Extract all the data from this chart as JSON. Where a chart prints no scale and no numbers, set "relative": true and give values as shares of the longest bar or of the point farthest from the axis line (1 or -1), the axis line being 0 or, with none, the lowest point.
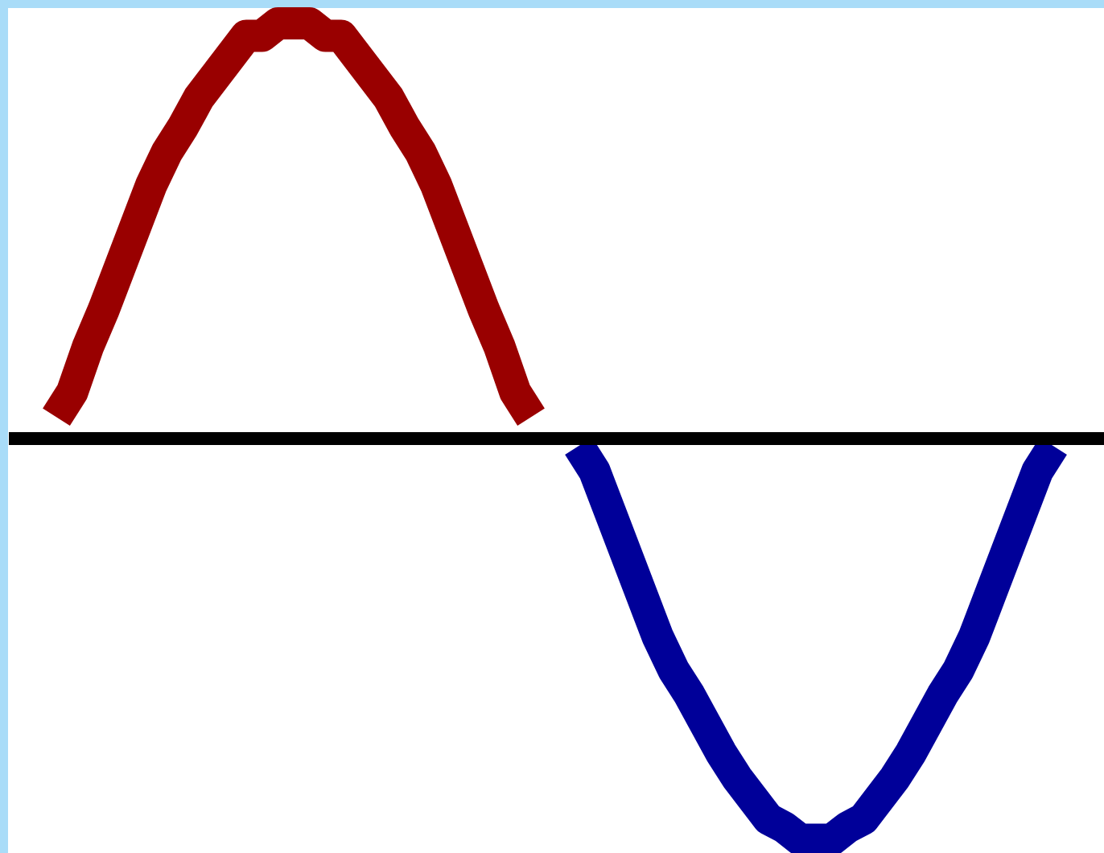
{
  "chart_data": {
    "type": "line",
    "relative": true,
    "line_style": "solid",
    "categories": [
      null,
      null,
      null,
      null,
      null,
      null,
      null,
      null,
      null,
      null,
      null,
      null,
      null,
      null,
      null,
      null,
      null,
      null,
      null,
      null,
      null,
      null,
      null,
      null,
      null,
      null,
      null,
      null,
      null,
      null,
      null,
      null,
      null,
      null,
      null,
      null,
      null,
      null,
      null,
      null,
      null,
      null,
      null,
      null,
      null,
      null,
      null,
      null,
      null,
      null,
      null,
      null,
      null,
      null,
      null,
      null,
      null,
      null,
      null,
      null,
      null,
      null,
      null,
      null
    ],
    "series": [
      {
        "color": "#990000",
        "values": [
          0.05,
          0.11,
          0.22,
          0.31,
          0.41,
          0.51,
          0.61,
          0.69,
          0.75,
          0.82,
          0.87,
          0.92,
          0.97,
          0.97,
          1,
          1,
          1,
          0.97,
          0.97,
          0.92,
          0.87,
          0.82,
          0.75,
          0.69,
          0.61,
          0.51,
          0.41,
          0.31,
          0.22,
          0.11,
          0.05,
          null,
          null,
          null,
          null,
          null,
          null,
          null,
          null,
          null,
          null,
          null,
          null,
          null,
          null,
          null,
          null,
          null,
          null,
          null,
          null,
          null,
          null,
          null,
          null,
          null,
          null,
          null,
          null,
          null,
          null,
          null,
          null,
          null
        ]
      },
      {
        "color": "#000099",
        "values": [
          null,
          null,
          null,
          null,
          null,
          null,
          null,
          null,
          null,
          null,
          null,
          null,
          null,
          null,
          null,
          null,
          null,
          null,
          null,
          null,
          null,
          null,
          null,
          null,
          null,
          null,
          null,
          null,
          null,
          null,
          null,
          null,
          null,
          -0.02,
          -0.08,
          -0.18,
          -0.28,
          -0.38,
          -0.48,
          -0.56,
          -0.62,
          -0.69,
          -0.76,
          -0.82,
          -0.87,
          -0.92,
          -0.94,
          -0.97,
          -0.97,
          -0.97,
          -0.94,
          -0.92,
          -0.87,
          -0.82,
          -0.76,
          -0.69,
          -0.62,
          -0.56,
          -0.48,
          -0.38,
          -0.28,
          -0.18,
          -0.08,
          -0.02
        ]
      }
    ]
  }
}
